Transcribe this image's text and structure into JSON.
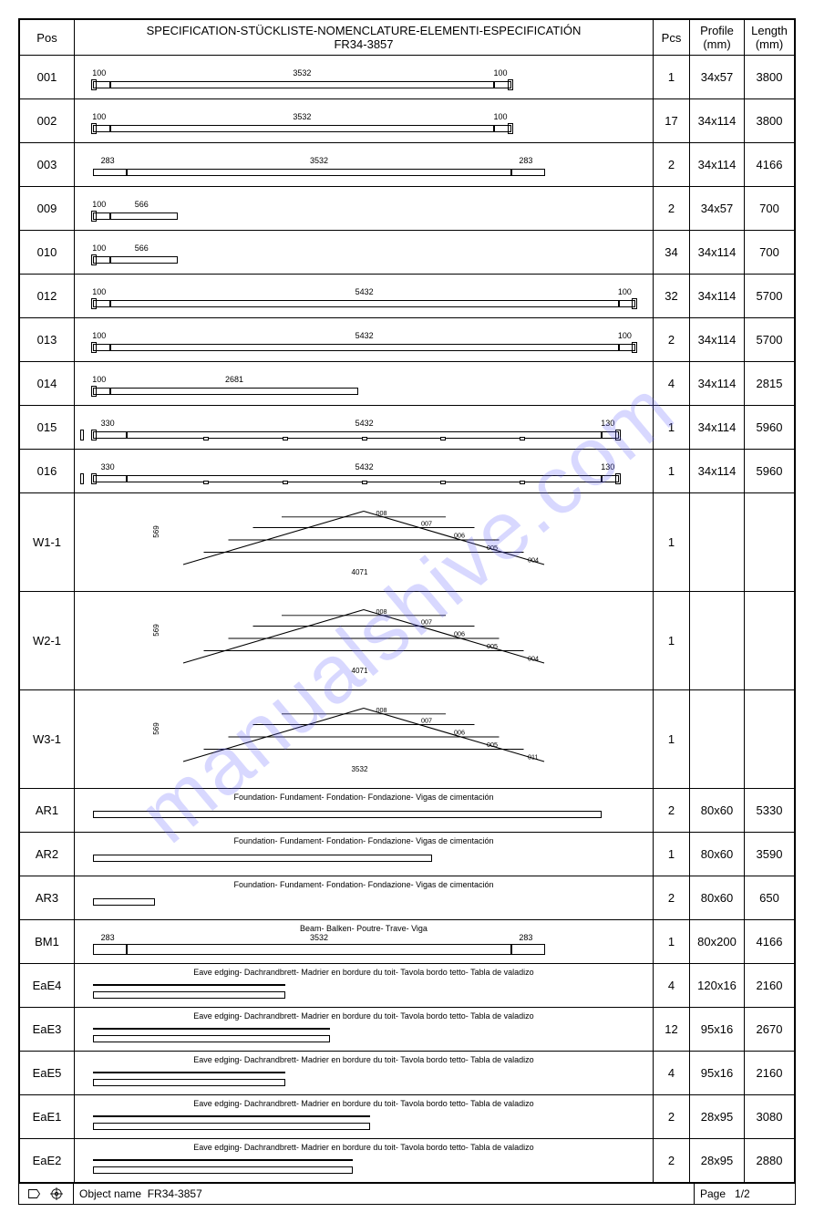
{
  "header": {
    "title_line1": "SPECIFICATION-STÜCKLISTE-NOMENCLATURE-ELEMENTI-ESPECIFICATIÓN",
    "title_line2": "FR34-3857",
    "col_pos": "Pos",
    "col_pcs": "Pcs",
    "col_profile": "Profile (mm)",
    "col_length": "Length (mm)"
  },
  "watermark": "manualshive.com",
  "rows": [
    {
      "pos": "001",
      "pcs": "1",
      "profile": "34x57",
      "length": "3800",
      "type": "bar",
      "segs": [
        {
          "v": "100",
          "w": 0.03
        },
        {
          "v": "3532",
          "w": 0.68
        },
        {
          "v": "100",
          "w": 0.03
        }
      ],
      "caps": true
    },
    {
      "pos": "002",
      "pcs": "17",
      "profile": "34x114",
      "length": "3800",
      "type": "bar",
      "segs": [
        {
          "v": "100",
          "w": 0.03
        },
        {
          "v": "3532",
          "w": 0.68
        },
        {
          "v": "100",
          "w": 0.03
        }
      ],
      "caps": true
    },
    {
      "pos": "003",
      "pcs": "2",
      "profile": "34x114",
      "length": "4166",
      "type": "bar",
      "segs": [
        {
          "v": "283",
          "w": 0.06
        },
        {
          "v": "3532",
          "w": 0.68
        },
        {
          "v": "283",
          "w": 0.06
        }
      ],
      "caps": false,
      "angled": true
    },
    {
      "pos": "009",
      "pcs": "2",
      "profile": "34x57",
      "length": "700",
      "type": "bar",
      "segs": [
        {
          "v": "100",
          "w": 0.03
        },
        {
          "v": "566",
          "w": 0.12
        }
      ],
      "caps": true,
      "left_only": true
    },
    {
      "pos": "010",
      "pcs": "34",
      "profile": "34x114",
      "length": "700",
      "type": "bar",
      "segs": [
        {
          "v": "100",
          "w": 0.03
        },
        {
          "v": "566",
          "w": 0.12
        }
      ],
      "caps": true,
      "left_only": true
    },
    {
      "pos": "012",
      "pcs": "32",
      "profile": "34x114",
      "length": "5700",
      "type": "bar",
      "segs": [
        {
          "v": "100",
          "w": 0.03
        },
        {
          "v": "5432",
          "w": 0.9
        },
        {
          "v": "100",
          "w": 0.03
        }
      ],
      "caps": true
    },
    {
      "pos": "013",
      "pcs": "2",
      "profile": "34x114",
      "length": "5700",
      "type": "bar",
      "segs": [
        {
          "v": "100",
          "w": 0.03
        },
        {
          "v": "5432",
          "w": 0.9
        },
        {
          "v": "100",
          "w": 0.03
        }
      ],
      "caps": true
    },
    {
      "pos": "014",
      "pcs": "4",
      "profile": "34x114",
      "length": "2815",
      "type": "bar",
      "segs": [
        {
          "v": "100",
          "w": 0.03
        },
        {
          "v": "2681",
          "w": 0.44
        }
      ],
      "caps": true,
      "left_only": true
    },
    {
      "pos": "015",
      "pcs": "1",
      "profile": "34x114",
      "length": "5960",
      "type": "bar",
      "segs": [
        {
          "v": "330",
          "w": 0.06
        },
        {
          "v": "5432",
          "w": 0.84
        },
        {
          "v": "130",
          "w": 0.03
        }
      ],
      "caps": true,
      "notches": 5,
      "pre": true
    },
    {
      "pos": "016",
      "pcs": "1",
      "profile": "34x114",
      "length": "5960",
      "type": "bar",
      "segs": [
        {
          "v": "330",
          "w": 0.06
        },
        {
          "v": "5432",
          "w": 0.84
        },
        {
          "v": "130",
          "w": 0.03
        }
      ],
      "caps": true,
      "notches": 5,
      "pre": true
    },
    {
      "pos": "W1-1",
      "pcs": "1",
      "profile": "",
      "length": "",
      "type": "truss",
      "height": "569",
      "base": "4071",
      "parts": [
        "008",
        "007",
        "006",
        "005",
        "004"
      ]
    },
    {
      "pos": "W2-1",
      "pcs": "1",
      "profile": "",
      "length": "",
      "type": "truss",
      "height": "569",
      "base": "4071",
      "parts": [
        "008",
        "007",
        "006",
        "005",
        "004"
      ]
    },
    {
      "pos": "W3-1",
      "pcs": "1",
      "profile": "",
      "length": "",
      "type": "truss",
      "height": "569",
      "base": "3532",
      "parts": [
        "008",
        "007",
        "006",
        "005",
        "011"
      ]
    },
    {
      "pos": "AR1",
      "pcs": "2",
      "profile": "80x60",
      "length": "5330",
      "type": "labeled-bar",
      "desc": "Foundation- Fundament- Fondation- Fondazione- Vigas de cimentación",
      "bw": 0.9
    },
    {
      "pos": "AR2",
      "pcs": "1",
      "profile": "80x60",
      "length": "3590",
      "type": "labeled-bar",
      "desc": "Foundation- Fundament- Fondation- Fondazione- Vigas de cimentación",
      "bw": 0.6
    },
    {
      "pos": "AR3",
      "pcs": "2",
      "profile": "80x60",
      "length": "650",
      "type": "labeled-bar",
      "desc": "Foundation- Fundament- Fondation- Fondazione- Vigas de cimentación",
      "bw": 0.11
    },
    {
      "pos": "BM1",
      "pcs": "1",
      "profile": "80x200",
      "length": "4166",
      "type": "beam",
      "desc": "Beam- Balken- Poutre- Trave- Viga",
      "segs": [
        {
          "v": "283",
          "w": 0.06
        },
        {
          "v": "3532",
          "w": 0.68
        },
        {
          "v": "283",
          "w": 0.06
        }
      ]
    },
    {
      "pos": "EaE4",
      "pcs": "4",
      "profile": "120x16",
      "length": "2160",
      "type": "line-bar",
      "desc": "Eave edging- Dachrandbrett- Madrier en bordure du toit- Tavola bordo tetto- Tabla de valadizo",
      "bw": 0.34
    },
    {
      "pos": "EaE3",
      "pcs": "12",
      "profile": "95x16",
      "length": "2670",
      "type": "line-bar",
      "desc": "Eave edging- Dachrandbrett- Madrier en bordure du toit- Tavola bordo tetto- Tabla de valadizo",
      "bw": 0.42
    },
    {
      "pos": "EaE5",
      "pcs": "4",
      "profile": "95x16",
      "length": "2160",
      "type": "line-bar",
      "desc": "Eave edging- Dachrandbrett- Madrier en bordure du toit- Tavola bordo tetto- Tabla de valadizo",
      "bw": 0.34
    },
    {
      "pos": "EaE1",
      "pcs": "2",
      "profile": "28x95",
      "length": "3080",
      "type": "line-bar",
      "desc": "Eave edging- Dachrandbrett- Madrier en bordure du toit- Tavola bordo tetto- Tabla de valadizo",
      "bw": 0.49
    },
    {
      "pos": "EaE2",
      "pcs": "2",
      "profile": "28x95",
      "length": "2880",
      "type": "line-bar",
      "desc": "Eave edging- Dachrandbrett- Madrier en bordure du toit- Tavola bordo tetto- Tabla de valadizo",
      "bw": 0.46
    }
  ],
  "footer": {
    "object_label": "Object name",
    "object_value": "FR34-3857",
    "page_label": "Page",
    "page_value": "1/2"
  },
  "colors": {
    "border": "#000000",
    "watermark": "rgba(100,100,255,0.25)",
    "bg": "#ffffff"
  }
}
